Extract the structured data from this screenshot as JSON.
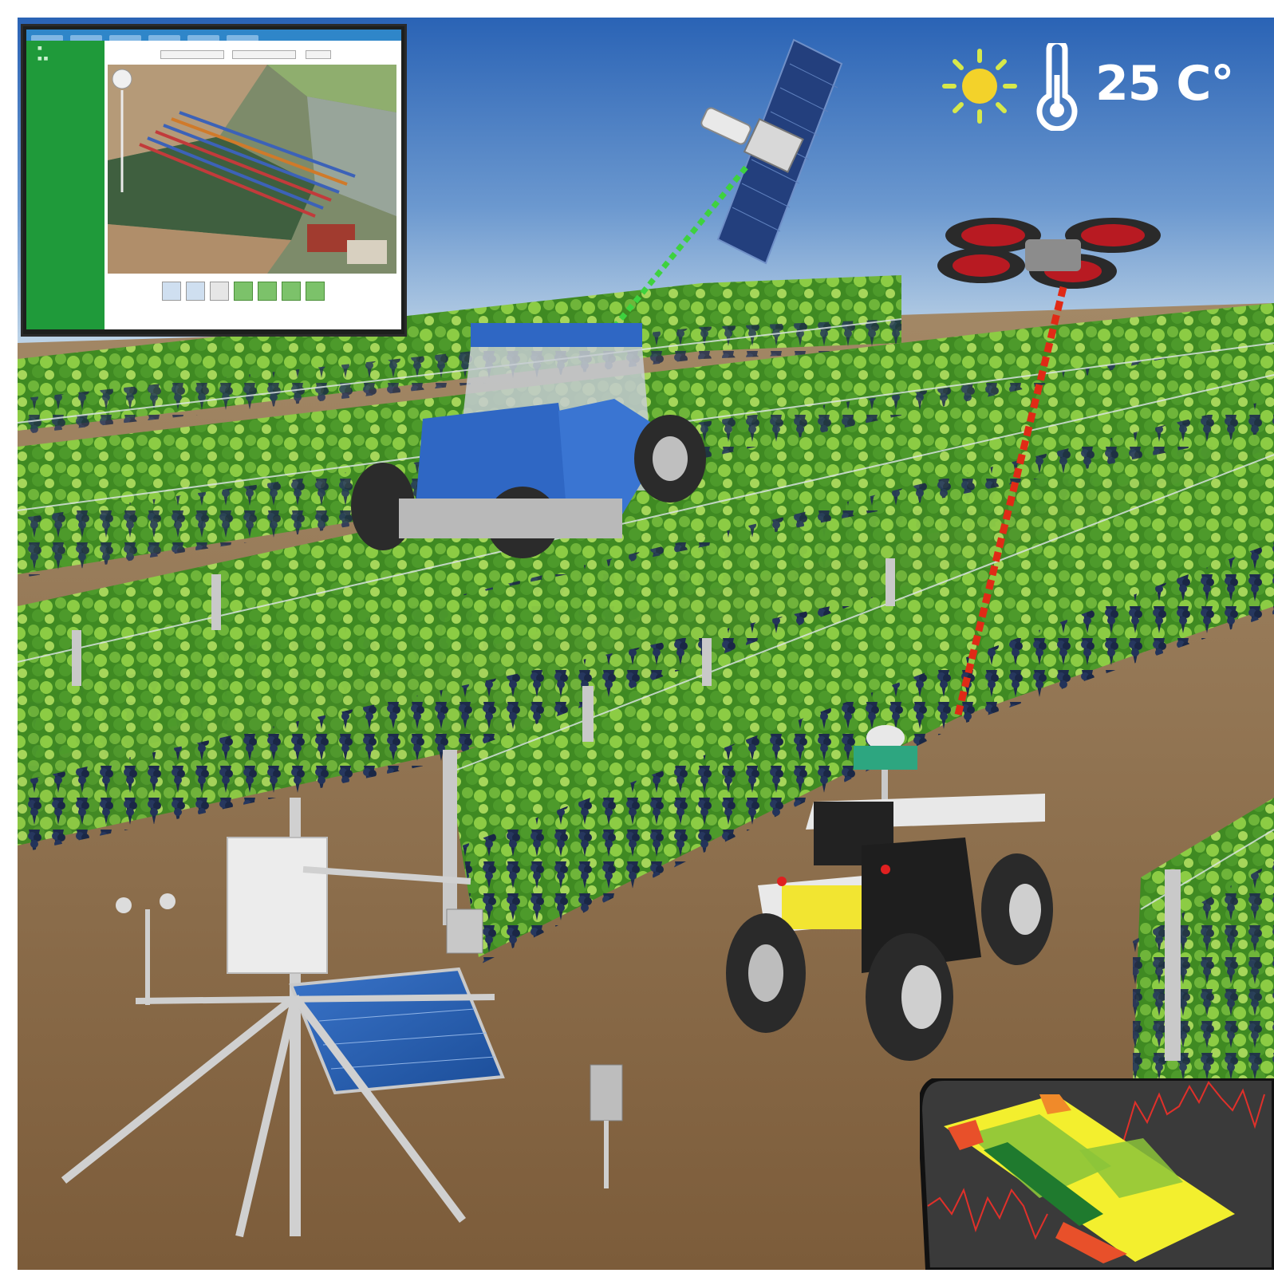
{
  "weather": {
    "icon": "sun-icon",
    "thermometer_icon": "thermometer-icon",
    "temperature": "25 C°"
  },
  "dashboard_inset": {
    "sidebar_title": "",
    "header_color": "#2f86c9",
    "sidebar_color": "#1f9a3a"
  },
  "colors": {
    "sky_top": "#2a66b8",
    "sky_bottom": "#c9dcea",
    "soil": "#8b6a45",
    "vine": "#4f9a2a",
    "grape": "#1b2a4a",
    "tractor": "#2f67c4",
    "satellite_link": "#3ed23e",
    "drone_link": "#e02a16"
  }
}
